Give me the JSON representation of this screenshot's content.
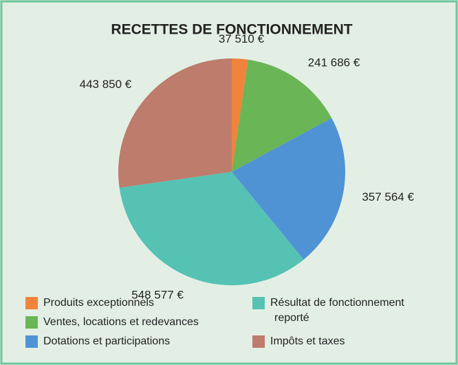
{
  "chart_data": {
    "type": "pie",
    "title": "RECETTES DE FONCTIONNEMENT",
    "categories": [
      "Produits exceptionnels",
      "Ventes, locations et redevances",
      "Dotations et participations",
      "Résultat de fonctionnement reporté",
      "Impôts et taxes"
    ],
    "values": [
      37510,
      241686,
      357564,
      548577,
      443850
    ],
    "value_labels": [
      "37 510 €",
      "241 686 €",
      "357 564 €",
      "548 577 €",
      "443 850 €"
    ],
    "colors": [
      "#f0843c",
      "#6ab556",
      "#4f93d4",
      "#55c2b3",
      "#bd7c6c"
    ]
  }
}
